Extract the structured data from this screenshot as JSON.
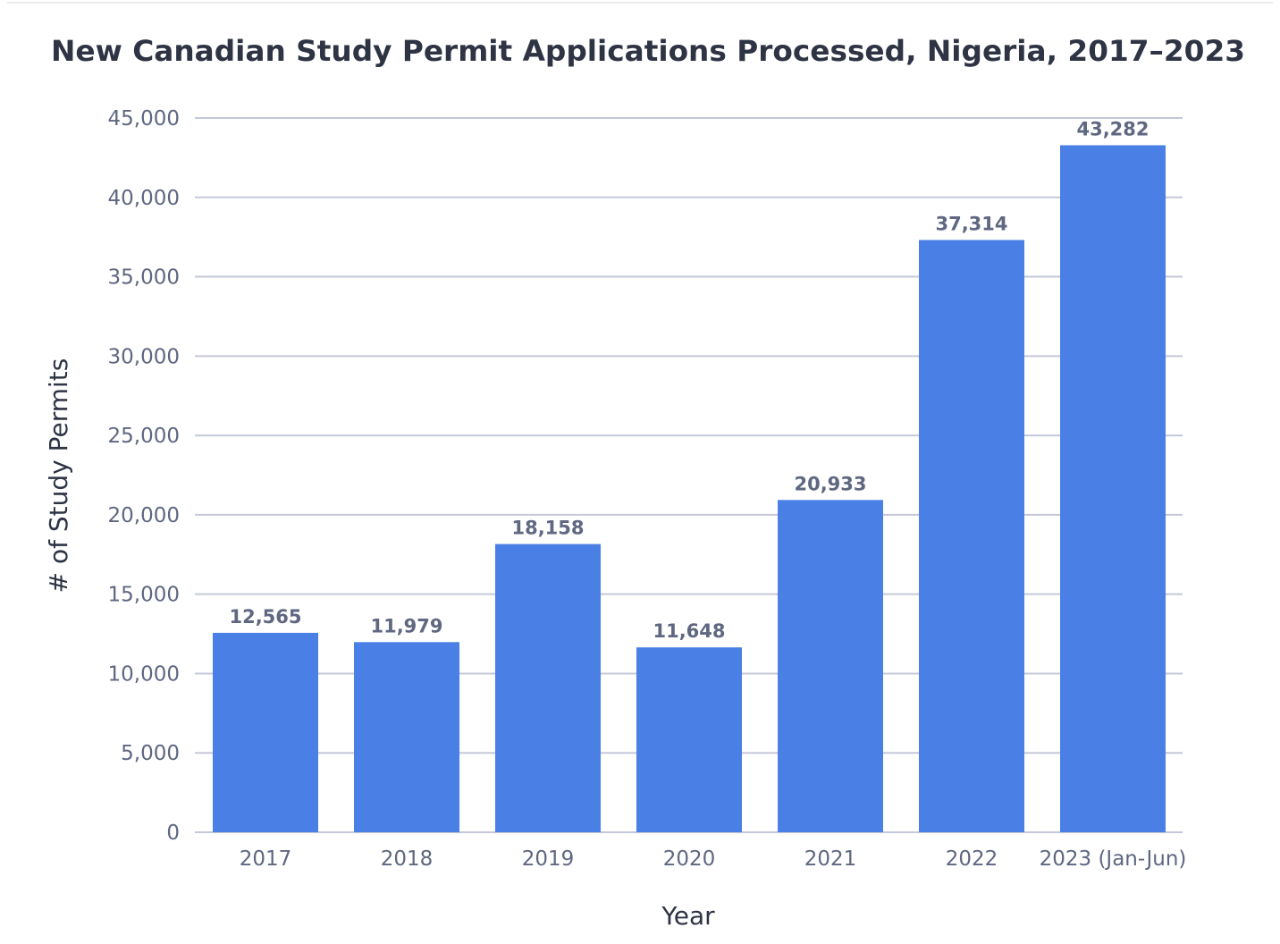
{
  "chart_data": {
    "type": "bar",
    "title": "New Canadian Study Permit Applications Processed, Nigeria, 2017–2023",
    "xlabel": "Year",
    "ylabel": "# of Study Permits",
    "categories": [
      "2017",
      "2018",
      "2019",
      "2020",
      "2021",
      "2022",
      "2023 (Jan-Jun)"
    ],
    "values": [
      12565,
      11979,
      18158,
      11648,
      20933,
      37314,
      43282
    ],
    "data_labels": [
      "12,565",
      "11,979",
      "18,158",
      "11,648",
      "20,933",
      "37,314",
      "43,282"
    ],
    "ylim": [
      0,
      45000
    ],
    "yticks": [
      0,
      5000,
      10000,
      15000,
      20000,
      25000,
      30000,
      35000,
      40000,
      45000
    ],
    "ytick_labels": [
      "0",
      "5,000",
      "10,000",
      "15,000",
      "20,000",
      "25,000",
      "30,000",
      "35,000",
      "40,000",
      "45,000"
    ],
    "grid": true,
    "bar_color": "#4a7fe6",
    "grid_color": "#c5c8d8"
  }
}
